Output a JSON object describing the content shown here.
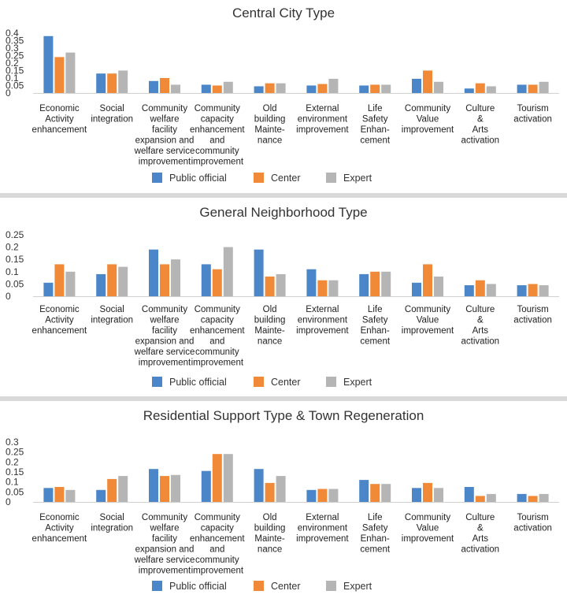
{
  "chart_data": [
    {
      "type": "bar",
      "title": "Central City Type",
      "categories": [
        "Economic Activity enhancement",
        "Social integration",
        "Community welfare facility expansion and welfare service improvement",
        "Community capacity enhancement and community improvement",
        "Old building Mainte-nance",
        "External environment improvement",
        "Life Safety Enhan-cement",
        "Community Value improvement",
        "Culture & Arts activation",
        "Tourism activation"
      ],
      "category_lines": [
        [
          "Economic",
          "Activity",
          "enhancement"
        ],
        [
          "Social",
          "integration"
        ],
        [
          "Community",
          "welfare",
          "facility",
          "expansion and",
          "welfare service",
          "improvement"
        ],
        [
          "Community",
          "capacity",
          "enhancement",
          "and",
          "community",
          "improvement"
        ],
        [
          "Old",
          "building",
          "Mainte-",
          "nance"
        ],
        [
          "External",
          "environment",
          "improvement"
        ],
        [
          "Life",
          "Safety",
          "Enhan-",
          "cement"
        ],
        [
          "Community",
          "Value",
          "improvement"
        ],
        [
          "Culture",
          "&",
          "Arts",
          "activation"
        ],
        [
          "Tourism",
          "activation"
        ]
      ],
      "series": [
        {
          "name": "Public official",
          "values": [
            0.38,
            0.13,
            0.08,
            0.055,
            0.045,
            0.05,
            0.05,
            0.095,
            0.03,
            0.055
          ]
        },
        {
          "name": "Center",
          "values": [
            0.24,
            0.13,
            0.1,
            0.05,
            0.065,
            0.06,
            0.055,
            0.15,
            0.065,
            0.055
          ]
        },
        {
          "name": "Expert",
          "values": [
            0.27,
            0.15,
            0.055,
            0.075,
            0.065,
            0.095,
            0.055,
            0.075,
            0.045,
            0.075
          ]
        }
      ],
      "ylim": [
        0,
        0.4
      ],
      "yticks": [
        0,
        0.05,
        0.1,
        0.15,
        0.2,
        0.25,
        0.3,
        0.35,
        0.4
      ],
      "ytick_labels": [
        "0",
        "0.05",
        "0.1",
        "0.15",
        "0.2",
        "0.25",
        "0.3",
        "0.35",
        "0.4"
      ],
      "grid": false,
      "legend_position": "bottom"
    },
    {
      "type": "bar",
      "title": "General Neighborhood Type",
      "categories": [
        "Economic Activity enhancement",
        "Social integration",
        "Community welfare facility expansion and welfare service improvement",
        "Community capacity enhancement and community improvement",
        "Old building Mainte-nance",
        "External environment improvement",
        "Life Safety Enhan-cement",
        "Community Value improvement",
        "Culture & Arts activation",
        "Tourism activation"
      ],
      "category_lines": [
        [
          "Economic",
          "Activity",
          "enhancement"
        ],
        [
          "Social",
          "integration"
        ],
        [
          "Community",
          "welfare",
          "facility",
          "expansion and",
          "welfare service",
          "improvement"
        ],
        [
          "Community",
          "capacity",
          "enhancement",
          "and",
          "community",
          "improvement"
        ],
        [
          "Old",
          "building",
          "Mainte-",
          "nance"
        ],
        [
          "External",
          "environment",
          "improvement"
        ],
        [
          "Life",
          "Safety",
          "Enhan-",
          "cement"
        ],
        [
          "Community",
          "Value",
          "improvement"
        ],
        [
          "Culture",
          "&",
          "Arts",
          "activation"
        ],
        [
          "Tourism",
          "activation"
        ]
      ],
      "series": [
        {
          "name": "Public official",
          "values": [
            0.055,
            0.09,
            0.19,
            0.13,
            0.19,
            0.11,
            0.09,
            0.055,
            0.045,
            0.045
          ]
        },
        {
          "name": "Center",
          "values": [
            0.13,
            0.13,
            0.13,
            0.11,
            0.08,
            0.065,
            0.1,
            0.13,
            0.065,
            0.05
          ]
        },
        {
          "name": "Expert",
          "values": [
            0.1,
            0.12,
            0.15,
            0.2,
            0.09,
            0.065,
            0.1,
            0.08,
            0.05,
            0.045
          ]
        }
      ],
      "ylim": [
        0,
        0.25
      ],
      "yticks": [
        0,
        0.05,
        0.1,
        0.15,
        0.2,
        0.25
      ],
      "ytick_labels": [
        "0",
        "0.05",
        "0.1",
        "0.15",
        "0.2",
        "0.25"
      ],
      "grid": false,
      "legend_position": "bottom"
    },
    {
      "type": "bar",
      "title": "Residential Support Type & Town Regeneration",
      "categories": [
        "Economic Activity enhancement",
        "Social integration",
        "Community welfare facility expansion and welfare service improvement",
        "Community capacity enhancement and community improvement",
        "Old building Mainte-nance",
        "External environment improvement",
        "Life Safety Enhan-cement",
        "Community Value improvement",
        "Culture & Arts activation",
        "Tourism activation"
      ],
      "category_lines": [
        [
          "Economic",
          "Activity",
          "enhancement"
        ],
        [
          "Social",
          "integration"
        ],
        [
          "Community",
          "welfare",
          "facility",
          "expansion and",
          "welfare service",
          "improvement"
        ],
        [
          "Community",
          "capacity",
          "enhancement",
          "and",
          "community",
          "improvement"
        ],
        [
          "Old",
          "building",
          "Mainte-",
          "nance"
        ],
        [
          "External",
          "environment",
          "improvement"
        ],
        [
          "Life",
          "Safety",
          "Enhan-",
          "cement"
        ],
        [
          "Community",
          "Value",
          "improvement"
        ],
        [
          "Culture",
          "&",
          "Arts",
          "activation"
        ],
        [
          "Tourism",
          "activation"
        ]
      ],
      "series": [
        {
          "name": "Public official",
          "values": [
            0.07,
            0.06,
            0.165,
            0.155,
            0.165,
            0.06,
            0.11,
            0.07,
            0.075,
            0.04
          ]
        },
        {
          "name": "Center",
          "values": [
            0.075,
            0.115,
            0.13,
            0.24,
            0.095,
            0.065,
            0.09,
            0.095,
            0.03,
            0.03
          ]
        },
        {
          "name": "Expert",
          "values": [
            0.06,
            0.13,
            0.135,
            0.24,
            0.13,
            0.065,
            0.09,
            0.07,
            0.04,
            0.04
          ]
        }
      ],
      "ylim": [
        0,
        0.3
      ],
      "yticks": [
        0,
        0.05,
        0.1,
        0.15,
        0.2,
        0.25,
        0.3
      ],
      "ytick_labels": [
        "0",
        "0.05",
        "0.1",
        "0.15",
        "0.2",
        "0.25",
        "0.3"
      ],
      "grid": false,
      "legend_position": "bottom"
    }
  ],
  "colors": {
    "Public official": "#4a86c8",
    "Center": "#f08a38",
    "Expert": "#b5b5b5"
  }
}
